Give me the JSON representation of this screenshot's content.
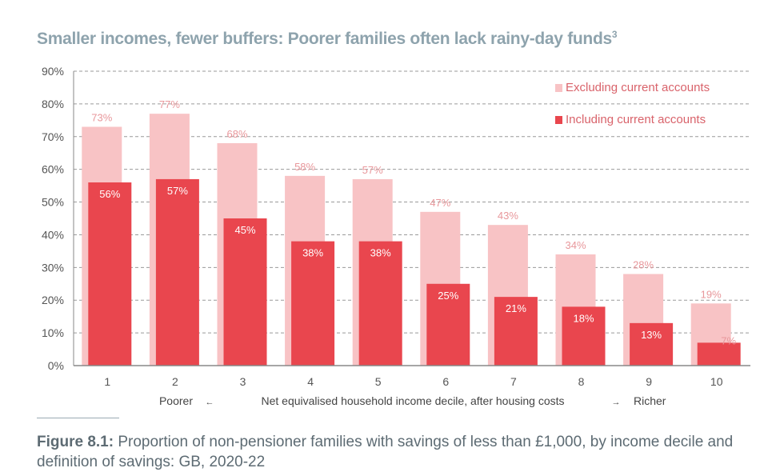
{
  "title": "Smaller incomes, fewer buffers: Poorer families often lack rainy-day funds",
  "title_footnote": "3",
  "caption_label": "Figure 8.1:",
  "caption_text": " Proportion of non-pensioner families with savings of less than £1,000, by income decile and definition of savings: GB, 2020-22",
  "colors": {
    "excluding": "#f8c3c5",
    "including": "#e9464e",
    "title": "#8ea3ad",
    "light_label": "#e8979b"
  },
  "chart_data": {
    "type": "bar",
    "categories": [
      "1",
      "2",
      "3",
      "4",
      "5",
      "6",
      "7",
      "8",
      "9",
      "10"
    ],
    "series": [
      {
        "name": "Excluding current accounts",
        "values": [
          73,
          77,
          68,
          58,
          57,
          47,
          43,
          34,
          28,
          19
        ]
      },
      {
        "name": "Including current accounts",
        "values": [
          56,
          57,
          45,
          38,
          38,
          25,
          21,
          18,
          13,
          7
        ]
      }
    ],
    "ylim": [
      0,
      90
    ],
    "yticks": [
      "0%",
      "10%",
      "20%",
      "30%",
      "40%",
      "50%",
      "60%",
      "70%",
      "80%",
      "90%"
    ],
    "xlabel": {
      "left": "Poorer",
      "left_arrow": "←",
      "center": "Net equivalised household income decile, after housing costs",
      "right_arrow": "→",
      "right": "Richer"
    },
    "grid": true,
    "legend_placement": "top-right"
  }
}
